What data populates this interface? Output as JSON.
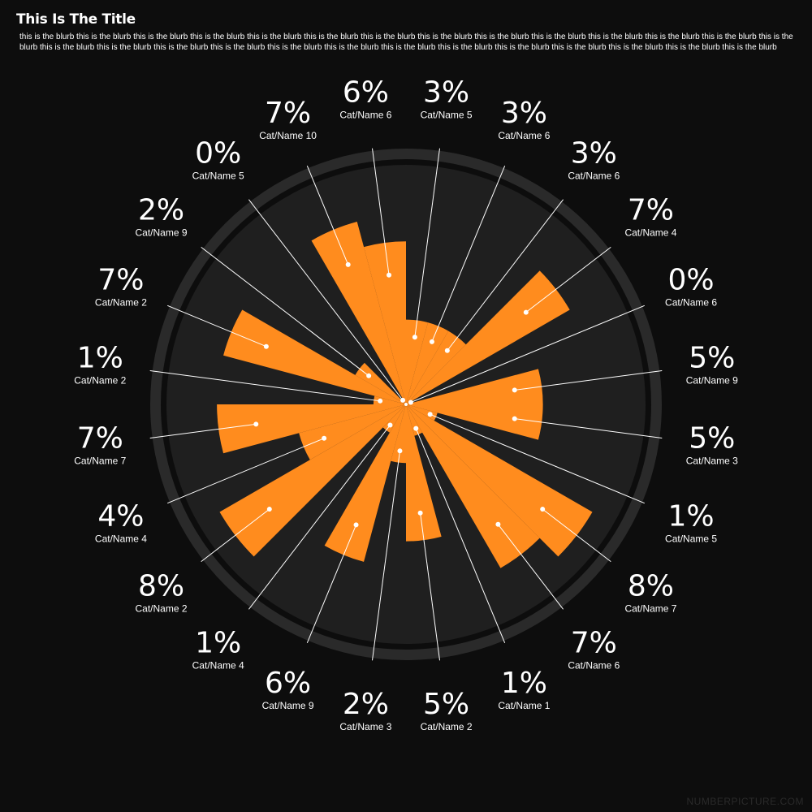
{
  "header": {
    "title": "This Is The Title",
    "blurb": "this is the blurb this is the blurb this is the blurb this is the blurb this is the blurb this is the blurb this is the blurb this is the blurb this is the blurb this is the blurb this is the blurb this is the blurb this is the blurb this is the blurb this is the blurb this is the blurb this is the blurb this is the blurb this is the blurb this is the blurb this is the blurb this is the blurb this is the blurb this is the blurb this is the blurb this is the blurb this is the blurb"
  },
  "footer": {
    "brand": "NUMBERPICTURE.COM"
  },
  "colors": {
    "bar": "#ff8c1e",
    "background": "#0d0d0d",
    "disc": "#1f1f1f",
    "ring": "#2a2a2a",
    "text": "#ffffff"
  },
  "chart_data": {
    "type": "radial-bar",
    "values_are": "percent",
    "segments": [
      {
        "name": "Cat/Name 5",
        "value": 3
      },
      {
        "name": "Cat/Name 6",
        "value": 3
      },
      {
        "name": "Cat/Name 6",
        "value": 3
      },
      {
        "name": "Cat/Name 4",
        "value": 7
      },
      {
        "name": "Cat/Name 6",
        "value": 0
      },
      {
        "name": "Cat/Name 9",
        "value": 5
      },
      {
        "name": "Cat/Name 3",
        "value": 5
      },
      {
        "name": "Cat/Name 5",
        "value": 1
      },
      {
        "name": "Cat/Name 7",
        "value": 8
      },
      {
        "name": "Cat/Name 6",
        "value": 7
      },
      {
        "name": "Cat/Name 1",
        "value": 1
      },
      {
        "name": "Cat/Name 2",
        "value": 5
      },
      {
        "name": "Cat/Name 3",
        "value": 2
      },
      {
        "name": "Cat/Name 9",
        "value": 6
      },
      {
        "name": "Cat/Name 4",
        "value": 1
      },
      {
        "name": "Cat/Name 2",
        "value": 8
      },
      {
        "name": "Cat/Name 4",
        "value": 4
      },
      {
        "name": "Cat/Name 7",
        "value": 7
      },
      {
        "name": "Cat/Name 2",
        "value": 1
      },
      {
        "name": "Cat/Name 2",
        "value": 7
      },
      {
        "name": "Cat/Name 9",
        "value": 2
      },
      {
        "name": "Cat/Name 5",
        "value": 0
      },
      {
        "name": "Cat/Name 10",
        "value": 7
      },
      {
        "name": "Cat/Name 6",
        "value": 6
      }
    ]
  }
}
